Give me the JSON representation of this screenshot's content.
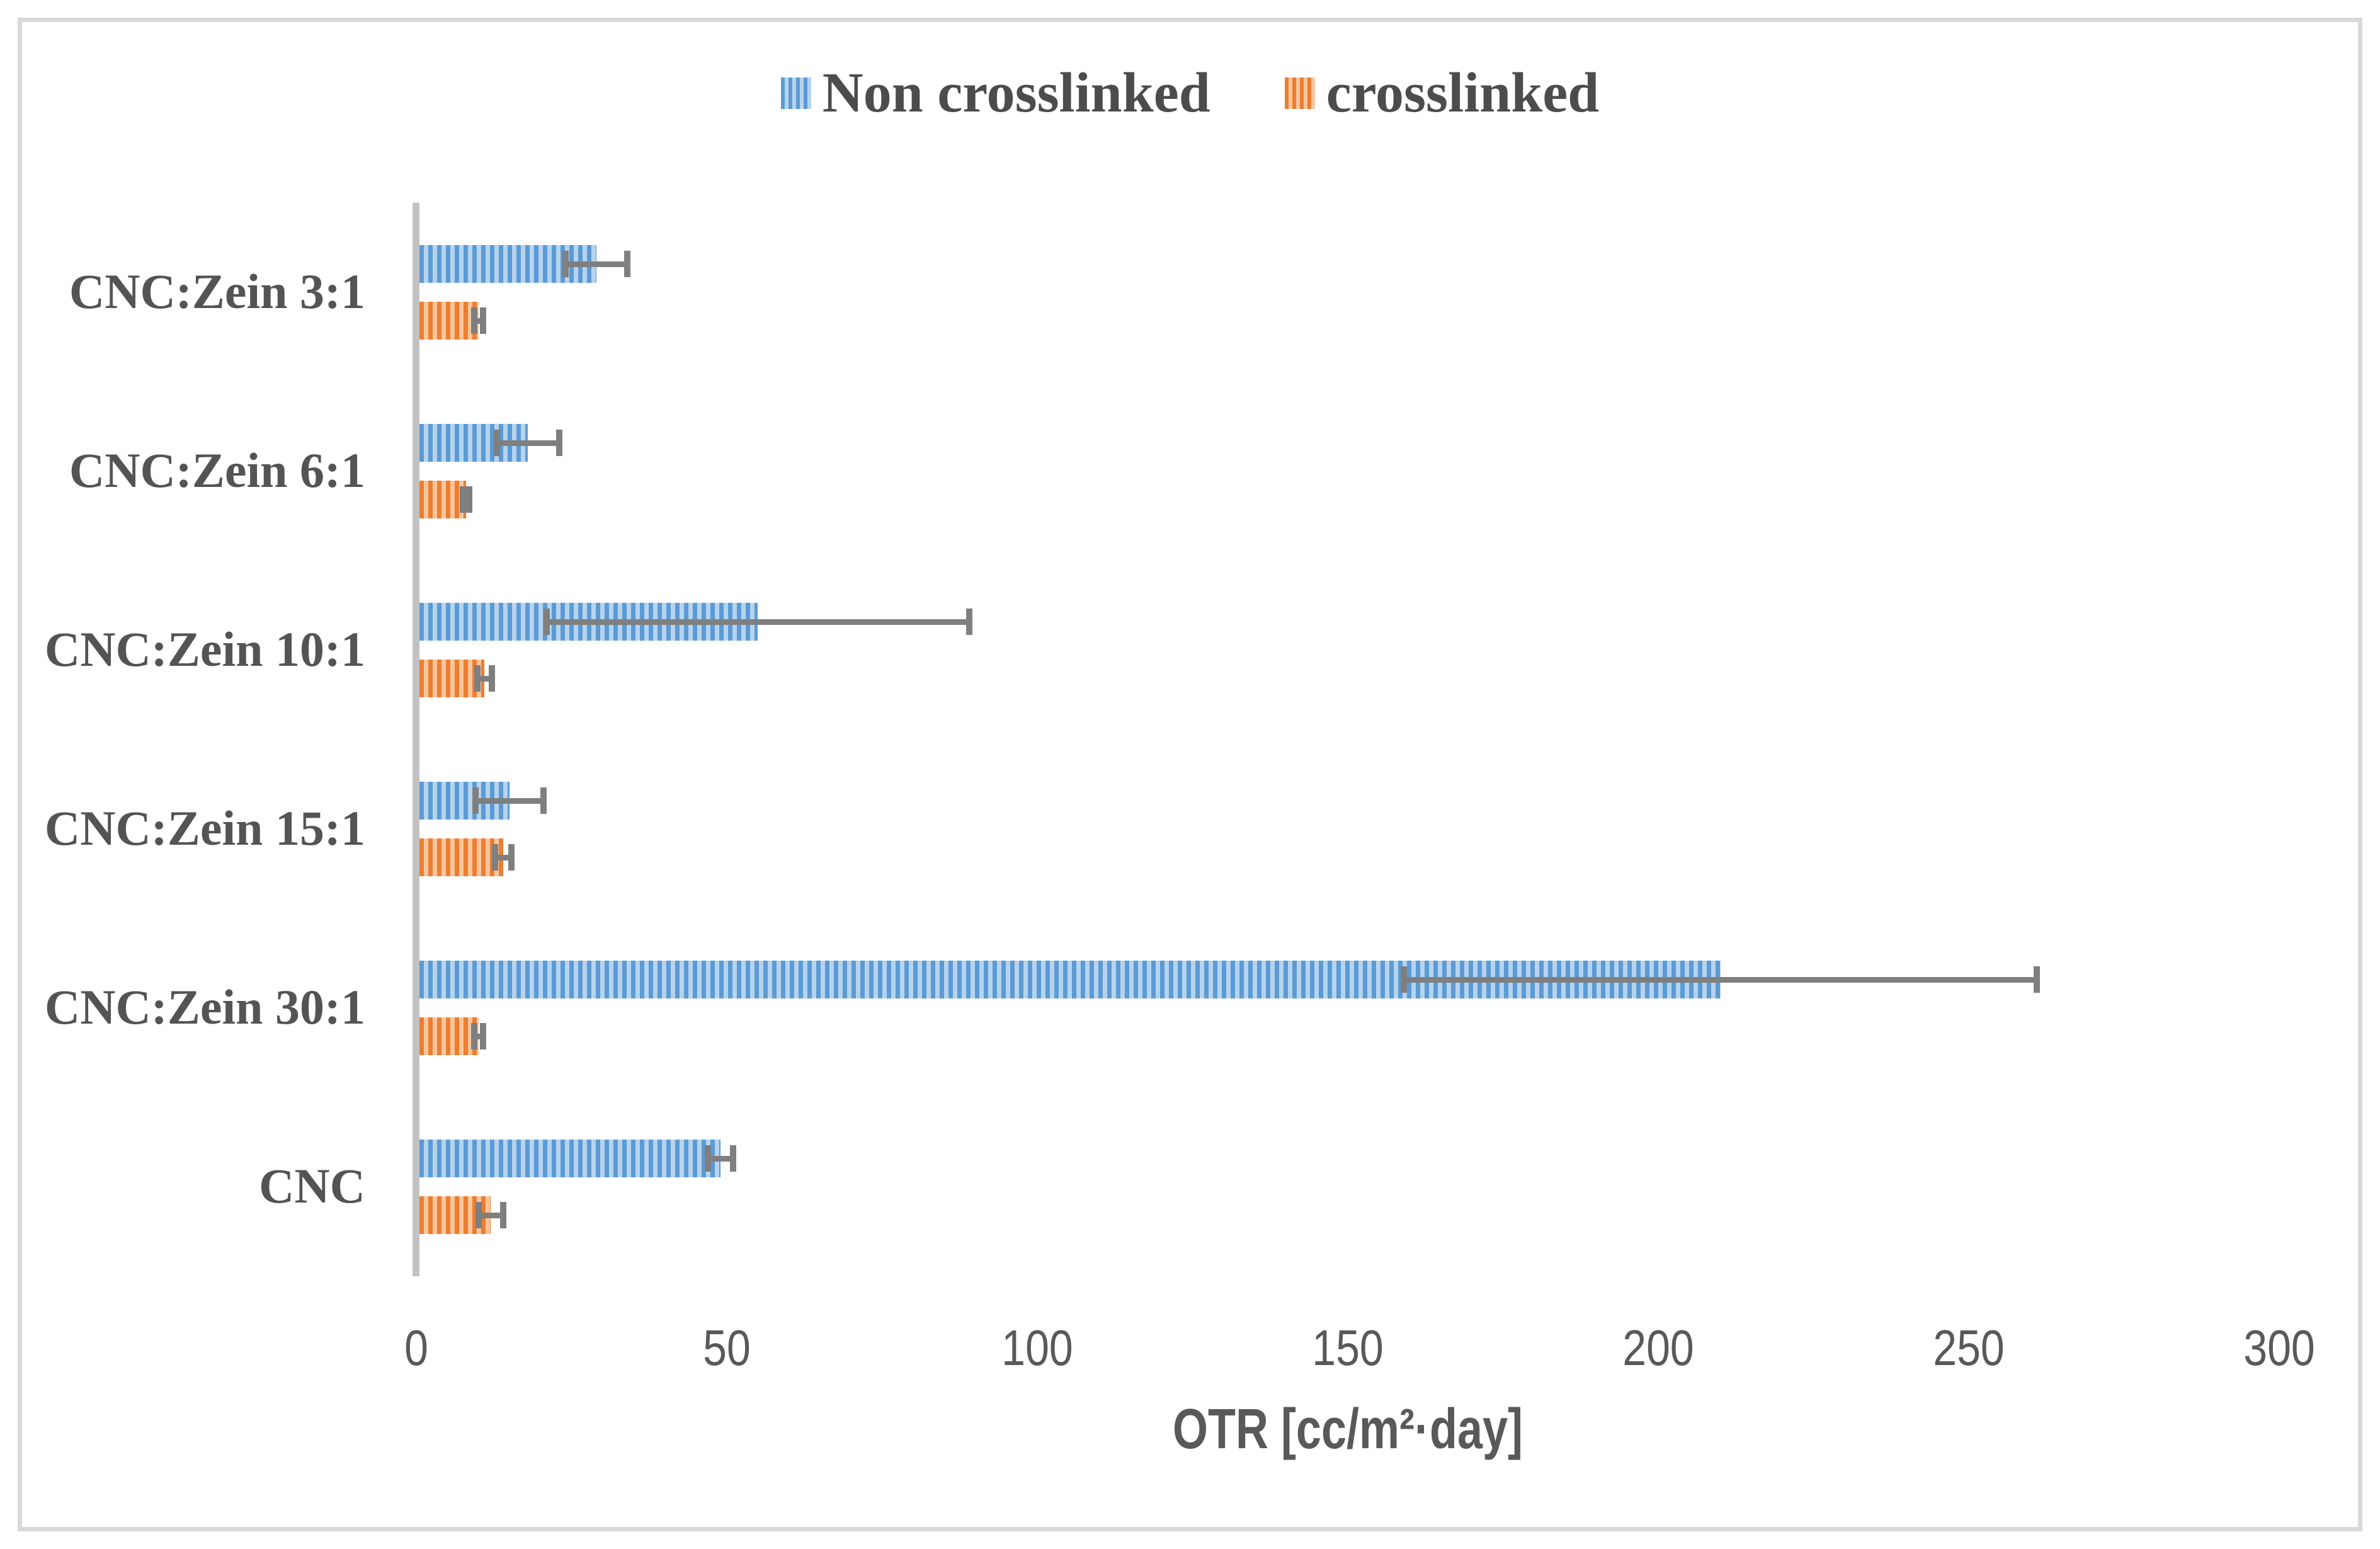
{
  "chart_data": {
    "type": "bar",
    "orientation": "horizontal",
    "title": "",
    "xlabel": "OTR [cc/m²·day]",
    "ylabel": "",
    "xlim": [
      0,
      300
    ],
    "xticks": [
      "0",
      "50",
      "100",
      "150",
      "200",
      "250",
      "300"
    ],
    "grid": false,
    "legend_position": "top-center",
    "categories": [
      "CNC:Zein 3:1",
      "CNC:Zein 6:1",
      "CNC:Zein 10:1",
      "CNC:Zein 15:1",
      "CNC:Zein 30:1",
      "CNC"
    ],
    "series": [
      {
        "name": "Non crosslinked",
        "values": [
          29,
          18,
          55,
          15,
          210,
          49
        ],
        "errors": [
          5,
          5,
          34,
          5.5,
          51,
          2
        ],
        "color_dark": "#5B9BD5",
        "color_light": "#B6D3EE",
        "pattern": "vertical-stripes"
      },
      {
        "name": "crosslinked",
        "values": [
          10,
          8,
          11,
          14,
          10,
          12
        ],
        "errors": [
          0.7,
          0.5,
          1.2,
          1.3,
          0.7,
          2
        ],
        "color_dark": "#ED7D31",
        "color_light": "#F8C69C",
        "pattern": "vertical-stripes"
      }
    ]
  },
  "legend": {
    "items": [
      {
        "label": "Non crosslinked"
      },
      {
        "label": "crosslinked"
      }
    ]
  },
  "colors": {
    "axis_line": "#C2C2C2",
    "error_bar": "#7F7F7F",
    "tick_text": "#595959",
    "label_text": "#545454",
    "frame_border": "#D9D9D9",
    "background": "#FFFFFF"
  }
}
